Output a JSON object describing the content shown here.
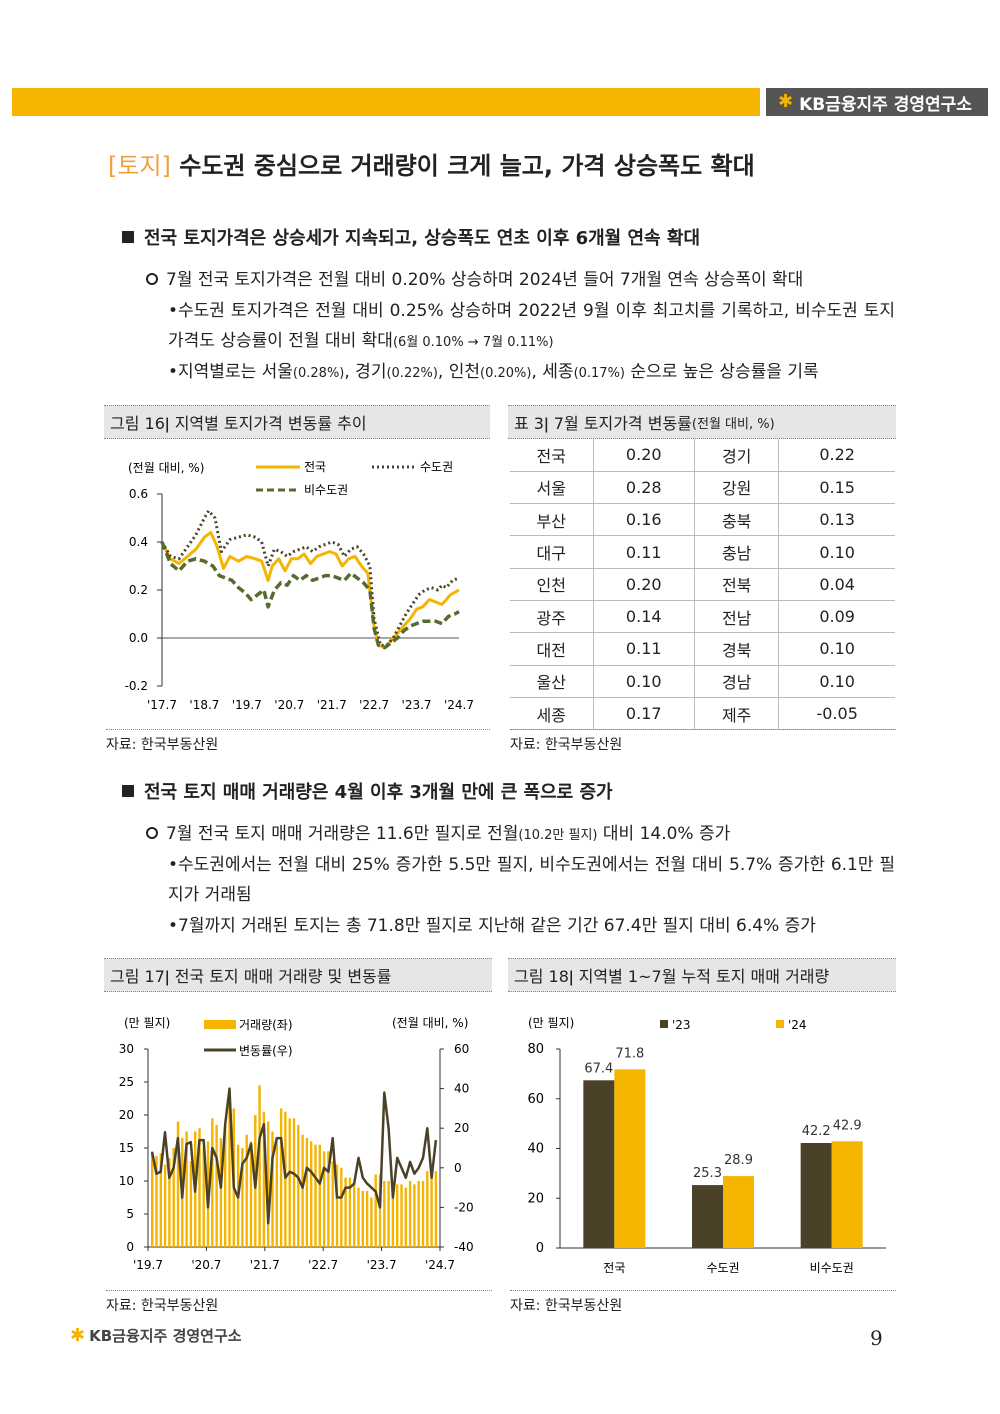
{
  "header": {
    "brand": "KB금융지주 경영연구소"
  },
  "title": {
    "tag": "[토지]",
    "text": "수도권 중심으로 거래량이 크게 늘고, 가격 상승폭도 확대"
  },
  "section1": {
    "heading": "전국 토지가격은 상승세가 지속되고, 상승폭도 연초 이후 6개월 연속 확대",
    "point": "7월 전국 토지가격은 전월 대비 0.20% 상승하며 2024년 들어 7개월 연속 상승폭이 확대",
    "bullet1a": "•수도권 토지가격은 전월 대비 0.25% 상승하며 2022년 9월 이후 최고치를 기록하고, 비수도권 토지가격도 상승률이 전월 대비 확대",
    "bullet1b": "(6월 0.10% → 7월 0.11%)",
    "bullet2a": "•지역별로는 서울",
    "bullet2b": "(0.28%)",
    "bullet2c": ", 경기",
    "bullet2d": "(0.22%)",
    "bullet2e": ", 인천",
    "bullet2f": "(0.20%)",
    "bullet2g": ", 세종",
    "bullet2h": "(0.17%)",
    "bullet2i": " 순으로 높은 상승률을 기록"
  },
  "fig16": {
    "caption": "그림 16ǀ 지역별 토지가격 변동률 추이",
    "unit": "(전월 대비, %)",
    "legend": [
      "전국",
      "수도권",
      "비수도권"
    ],
    "source": "자료: 한국부동산원"
  },
  "table3": {
    "caption_main": "표 3ǀ 7월 토지가격 변동률",
    "caption_unit": "(전월 대비, %)",
    "rows": [
      [
        "전국",
        "0.20",
        "경기",
        "0.22"
      ],
      [
        "서울",
        "0.28",
        "강원",
        "0.15"
      ],
      [
        "부산",
        "0.16",
        "충북",
        "0.13"
      ],
      [
        "대구",
        "0.11",
        "충남",
        "0.10"
      ],
      [
        "인천",
        "0.20",
        "전북",
        "0.04"
      ],
      [
        "광주",
        "0.14",
        "전남",
        "0.09"
      ],
      [
        "대전",
        "0.11",
        "경북",
        "0.10"
      ],
      [
        "울산",
        "0.10",
        "경남",
        "0.10"
      ],
      [
        "세종",
        "0.17",
        "제주",
        "-0.05"
      ]
    ],
    "source": "자료: 한국부동산원"
  },
  "section2": {
    "heading": "전국 토지 매매 거래량은 4월 이후 3개월 만에 큰 폭으로 증가",
    "point_a": "7월 전국 토지 매매 거래량은 11.6만 필지로 전월",
    "point_b": "(10.2만 필지)",
    "point_c": " 대비 14.0% 증가",
    "bullet1": "•수도권에서는 전월 대비 25% 증가한 5.5만 필지, 비수도권에서는 전월 대비 5.7% 증가한 6.1만 필지가 거래됨",
    "bullet2": "•7월까지 거래된 토지는 총 71.8만 필지로 지난해 같은 기간 67.4만 필지 대비 6.4% 증가"
  },
  "fig17": {
    "caption": "그림 17ǀ 전국 토지 매매 거래량 및 변동률",
    "unit_left": "(만 필지)",
    "unit_right": "(전월 대비, %)",
    "legend": [
      "거래량(좌)",
      "변동률(우)"
    ],
    "source": "자료: 한국부동산원"
  },
  "fig18": {
    "caption": "그림 18ǀ 지역별 1~7월 누적 토지 매매 거래량",
    "unit": "(만 필지)",
    "source": "자료: 한국부동산원"
  },
  "footer": {
    "brand": "KB금융지주 경영연구소",
    "page": "9"
  },
  "colors": {
    "accent": "#f5b400",
    "dark": "#4a4128",
    "green": "#556b2f"
  },
  "chart_data": [
    {
      "type": "line",
      "title": "지역별 토지가격 변동률 추이",
      "ylabel": "(전월 대비, %)",
      "ylim": [
        -0.2,
        0.6
      ],
      "yticks": [
        -0.2,
        0.0,
        0.2,
        0.4,
        0.6
      ],
      "xticks": [
        "'17.7",
        "'18.7",
        "'19.7",
        "'20.7",
        "'21.7",
        "'22.7",
        "'23.7",
        "'24.7"
      ],
      "x_range": [
        2017.5,
        2024.5
      ],
      "legend_position": "top",
      "series": [
        {
          "name": "전국",
          "style": "solid",
          "color": "#f5b400",
          "points": [
            [
              2017.5,
              0.4
            ],
            [
              2017.7,
              0.33
            ],
            [
              2017.9,
              0.31
            ],
            [
              2018.1,
              0.34
            ],
            [
              2018.3,
              0.37
            ],
            [
              2018.5,
              0.42
            ],
            [
              2018.65,
              0.44
            ],
            [
              2018.8,
              0.38
            ],
            [
              2018.95,
              0.29
            ],
            [
              2019.1,
              0.34
            ],
            [
              2019.3,
              0.32
            ],
            [
              2019.5,
              0.34
            ],
            [
              2019.7,
              0.33
            ],
            [
              2019.85,
              0.32
            ],
            [
              2020.0,
              0.24
            ],
            [
              2020.1,
              0.3
            ],
            [
              2020.25,
              0.33
            ],
            [
              2020.4,
              0.28
            ],
            [
              2020.55,
              0.33
            ],
            [
              2020.7,
              0.33
            ],
            [
              2020.85,
              0.35
            ],
            [
              2021.0,
              0.31
            ],
            [
              2021.15,
              0.34
            ],
            [
              2021.3,
              0.35
            ],
            [
              2021.45,
              0.36
            ],
            [
              2021.6,
              0.35
            ],
            [
              2021.75,
              0.3
            ],
            [
              2021.9,
              0.33
            ],
            [
              2022.05,
              0.34
            ],
            [
              2022.2,
              0.3
            ],
            [
              2022.35,
              0.27
            ],
            [
              2022.5,
              0.05
            ],
            [
              2022.6,
              -0.03
            ],
            [
              2022.75,
              -0.04
            ],
            [
              2022.9,
              -0.01
            ],
            [
              2023.05,
              0.02
            ],
            [
              2023.2,
              0.05
            ],
            [
              2023.35,
              0.08
            ],
            [
              2023.5,
              0.12
            ],
            [
              2023.65,
              0.13
            ],
            [
              2023.8,
              0.16
            ],
            [
              2023.95,
              0.15
            ],
            [
              2024.1,
              0.14
            ],
            [
              2024.2,
              0.16
            ],
            [
              2024.3,
              0.18
            ],
            [
              2024.5,
              0.2
            ]
          ]
        },
        {
          "name": "수도권",
          "style": "dotted",
          "color": "#4a4128",
          "points": [
            [
              2017.5,
              0.4
            ],
            [
              2017.7,
              0.34
            ],
            [
              2017.9,
              0.33
            ],
            [
              2018.1,
              0.38
            ],
            [
              2018.3,
              0.43
            ],
            [
              2018.5,
              0.5
            ],
            [
              2018.6,
              0.53
            ],
            [
              2018.75,
              0.5
            ],
            [
              2018.9,
              0.36
            ],
            [
              2019.1,
              0.41
            ],
            [
              2019.3,
              0.42
            ],
            [
              2019.5,
              0.43
            ],
            [
              2019.7,
              0.42
            ],
            [
              2019.85,
              0.4
            ],
            [
              2020.0,
              0.3
            ],
            [
              2020.15,
              0.37
            ],
            [
              2020.3,
              0.36
            ],
            [
              2020.45,
              0.34
            ],
            [
              2020.6,
              0.36
            ],
            [
              2020.75,
              0.37
            ],
            [
              2020.9,
              0.38
            ],
            [
              2021.05,
              0.36
            ],
            [
              2021.2,
              0.38
            ],
            [
              2021.35,
              0.39
            ],
            [
              2021.5,
              0.4
            ],
            [
              2021.65,
              0.39
            ],
            [
              2021.8,
              0.34
            ],
            [
              2021.95,
              0.37
            ],
            [
              2022.1,
              0.38
            ],
            [
              2022.25,
              0.35
            ],
            [
              2022.4,
              0.3
            ],
            [
              2022.5,
              0.08
            ],
            [
              2022.65,
              -0.03
            ],
            [
              2022.8,
              -0.03
            ],
            [
              2022.95,
              0.0
            ],
            [
              2023.1,
              0.05
            ],
            [
              2023.25,
              0.1
            ],
            [
              2023.4,
              0.14
            ],
            [
              2023.55,
              0.18
            ],
            [
              2023.7,
              0.2
            ],
            [
              2023.85,
              0.21
            ],
            [
              2024.0,
              0.2
            ],
            [
              2024.1,
              0.22
            ],
            [
              2024.2,
              0.21
            ],
            [
              2024.35,
              0.24
            ],
            [
              2024.5,
              0.25
            ]
          ]
        },
        {
          "name": "비수도권",
          "style": "dashed",
          "color": "#556b2f",
          "points": [
            [
              2017.5,
              0.4
            ],
            [
              2017.7,
              0.31
            ],
            [
              2017.9,
              0.28
            ],
            [
              2018.1,
              0.32
            ],
            [
              2018.3,
              0.33
            ],
            [
              2018.5,
              0.32
            ],
            [
              2018.7,
              0.3
            ],
            [
              2018.85,
              0.26
            ],
            [
              2019.0,
              0.25
            ],
            [
              2019.15,
              0.24
            ],
            [
              2019.3,
              0.21
            ],
            [
              2019.45,
              0.19
            ],
            [
              2019.6,
              0.16
            ],
            [
              2019.75,
              0.18
            ],
            [
              2019.9,
              0.2
            ],
            [
              2020.0,
              0.13
            ],
            [
              2020.15,
              0.2
            ],
            [
              2020.3,
              0.23
            ],
            [
              2020.45,
              0.22
            ],
            [
              2020.6,
              0.26
            ],
            [
              2020.75,
              0.24
            ],
            [
              2020.9,
              0.26
            ],
            [
              2021.05,
              0.24
            ],
            [
              2021.2,
              0.25
            ],
            [
              2021.35,
              0.26
            ],
            [
              2021.5,
              0.26
            ],
            [
              2021.65,
              0.25
            ],
            [
              2021.8,
              0.24
            ],
            [
              2021.95,
              0.27
            ],
            [
              2022.1,
              0.25
            ],
            [
              2022.25,
              0.23
            ],
            [
              2022.4,
              0.2
            ],
            [
              2022.5,
              0.04
            ],
            [
              2022.6,
              -0.03
            ],
            [
              2022.75,
              -0.04
            ],
            [
              2022.9,
              -0.02
            ],
            [
              2023.05,
              0.0
            ],
            [
              2023.2,
              0.03
            ],
            [
              2023.35,
              0.05
            ],
            [
              2023.5,
              0.06
            ],
            [
              2023.65,
              0.07
            ],
            [
              2023.8,
              0.07
            ],
            [
              2023.95,
              0.07
            ],
            [
              2024.1,
              0.06
            ],
            [
              2024.25,
              0.09
            ],
            [
              2024.4,
              0.1
            ],
            [
              2024.5,
              0.11
            ]
          ]
        }
      ]
    },
    {
      "type": "bar+line",
      "title": "전국 토지 매매 거래량 및 변동률",
      "ylim_left": [
        0,
        30
      ],
      "yticks_left": [
        0,
        5,
        10,
        15,
        20,
        25,
        30
      ],
      "ylim_right": [
        -40,
        60
      ],
      "yticks_right": [
        -40,
        -20,
        0,
        20,
        40,
        60
      ],
      "xticks": [
        "'19.7",
        "'20.7",
        "'21.7",
        "'22.7",
        "'23.7",
        "'24.7"
      ],
      "x_range": [
        2019.5,
        2024.5
      ],
      "series": [
        {
          "name": "거래량(좌)",
          "color": "#f5b400",
          "values": [
            14.5,
            13.8,
            14.2,
            12.5,
            13.5,
            15.0,
            19.0,
            16.5,
            17.5,
            13.0,
            17.5,
            18.0,
            15.0,
            16.0,
            19.5,
            18.5,
            16.5,
            19.0,
            23.5,
            21.0,
            15.5,
            15.0,
            17.0,
            16.0,
            20.0,
            24.5,
            20.5,
            19.0,
            17.5,
            16.0,
            21.0,
            20.5,
            19.5,
            19.5,
            18.5,
            17.0,
            16.5,
            16.0,
            15.5,
            15.5,
            14.5,
            14.5,
            13.0,
            12.5,
            12.0,
            10.5,
            10.5,
            9.5,
            9.0,
            8.5,
            8.5,
            7.5,
            11.0,
            11.0,
            10.0,
            10.0,
            9.5,
            9.5,
            9.5,
            9.0,
            10.0,
            9.5,
            10.0,
            10.0,
            11.5,
            11.0,
            11.5
          ]
        },
        {
          "name": "변동률(우)",
          "color": "#4a4128",
          "values": [
            8,
            -3,
            -2,
            18,
            -5,
            0,
            15,
            -15,
            12,
            13,
            -12,
            14,
            14,
            -20,
            10,
            5,
            -10,
            22,
            40,
            -10,
            -15,
            2,
            5,
            12,
            -10,
            15,
            22,
            -28,
            5,
            15,
            15,
            -5,
            -2,
            -3,
            -5,
            -10,
            0,
            -2,
            -5,
            -8,
            0,
            -2,
            15,
            -15,
            -15,
            -10,
            -10,
            -8,
            5,
            -5,
            -8,
            -10,
            -12,
            -20,
            38,
            20,
            -15,
            5,
            0,
            -5,
            3,
            -3,
            0,
            5,
            20,
            -5,
            14
          ]
        }
      ]
    },
    {
      "type": "bar",
      "title": "지역별 1~7월 누적 토지 매매 거래량",
      "categories": [
        "전국",
        "수도권",
        "비수도권"
      ],
      "ylim": [
        0,
        80
      ],
      "yticks": [
        0,
        20,
        40,
        60,
        80
      ],
      "series": [
        {
          "name": "'23",
          "color": "#4a4128",
          "values": [
            67.4,
            25.3,
            42.2
          ]
        },
        {
          "name": "'24",
          "color": "#f5b400",
          "values": [
            71.8,
            28.9,
            42.9
          ]
        }
      ]
    }
  ]
}
